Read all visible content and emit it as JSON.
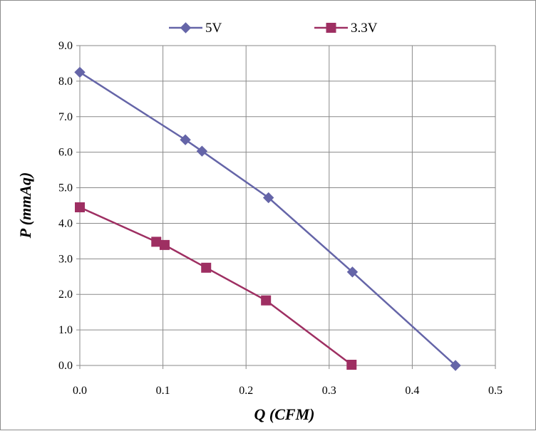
{
  "chart_data": {
    "type": "line",
    "xlabel": "Q (CFM)",
    "ylabel": "P (mmAq)",
    "xlim": [
      0,
      0.5
    ],
    "ylim": [
      0,
      9
    ],
    "x_ticks": [
      "0.0",
      "0.1",
      "0.2",
      "0.3",
      "0.4",
      "0.5"
    ],
    "y_ticks": [
      "0.0",
      "1.0",
      "2.0",
      "3.0",
      "4.0",
      "5.0",
      "6.0",
      "7.0",
      "8.0",
      "9.0"
    ],
    "grid": true,
    "legend_position": "top",
    "series": [
      {
        "name": "5V",
        "color": "#6565a8",
        "marker": "diamond",
        "points": [
          [
            0.0,
            8.25
          ],
          [
            0.127,
            6.35
          ],
          [
            0.147,
            6.03
          ],
          [
            0.227,
            4.72
          ],
          [
            0.328,
            2.63
          ],
          [
            0.452,
            0.0
          ]
        ]
      },
      {
        "name": "3.3V",
        "color": "#9e2f62",
        "marker": "square",
        "points": [
          [
            0.0,
            4.45
          ],
          [
            0.092,
            3.48
          ],
          [
            0.102,
            3.39
          ],
          [
            0.152,
            2.75
          ],
          [
            0.224,
            1.83
          ],
          [
            0.327,
            0.02
          ]
        ]
      }
    ]
  }
}
